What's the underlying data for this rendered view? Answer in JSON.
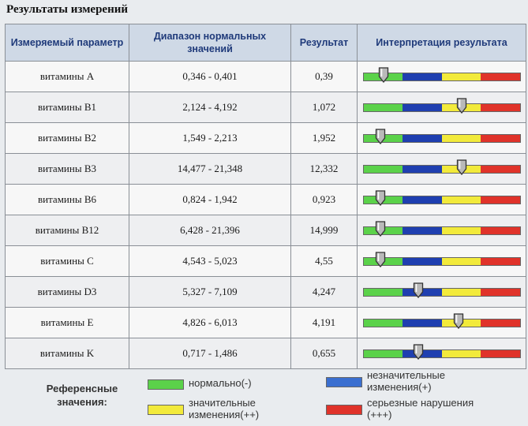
{
  "title": "Результаты измерений",
  "table": {
    "headers": [
      "Измеряемый параметр",
      "Диапазон нормальных значений",
      "Результат",
      "Интерпретация результата"
    ],
    "rows": [
      {
        "param": "витамины A",
        "range": "0,346 - 0,401",
        "result": "0,39",
        "position": 0.13
      },
      {
        "param": "витамины B1",
        "range": "2,124 - 4,192",
        "result": "1,072",
        "position": 0.63
      },
      {
        "param": "витамины B2",
        "range": "1,549 - 2,213",
        "result": "1,952",
        "position": 0.11
      },
      {
        "param": "витамины B3",
        "range": "14,477 - 21,348",
        "result": "12,332",
        "position": 0.63
      },
      {
        "param": "витамины B6",
        "range": "0,824 - 1,942",
        "result": "0,923",
        "position": 0.11
      },
      {
        "param": "витамины B12",
        "range": "6,428 - 21,396",
        "result": "14,999",
        "position": 0.11
      },
      {
        "param": "витамины C",
        "range": "4,543 - 5,023",
        "result": "4,55",
        "position": 0.11
      },
      {
        "param": "витамины D3",
        "range": "5,327 - 7,109",
        "result": "4,247",
        "position": 0.35
      },
      {
        "param": "витамины E",
        "range": "4,826 - 6,013",
        "result": "4,191",
        "position": 0.61
      },
      {
        "param": "витамины K",
        "range": "0,717 - 1,486",
        "result": "0,655",
        "position": 0.35
      }
    ]
  },
  "scale_colors": [
    "#5bd24a",
    "#1f3fb0",
    "#f2ea3b",
    "#e0332a"
  ],
  "legend": {
    "title": "Референсные значения:",
    "items": [
      {
        "label": "нормально(-)",
        "color": "#5bd24a"
      },
      {
        "label": "незначительные изменения(+)",
        "color": "#3a6fd0"
      },
      {
        "label": "значительные изменения(++)",
        "color": "#f2ea3b"
      },
      {
        "label": "серьезные нарушения (+++)",
        "color": "#e0332a"
      }
    ]
  }
}
